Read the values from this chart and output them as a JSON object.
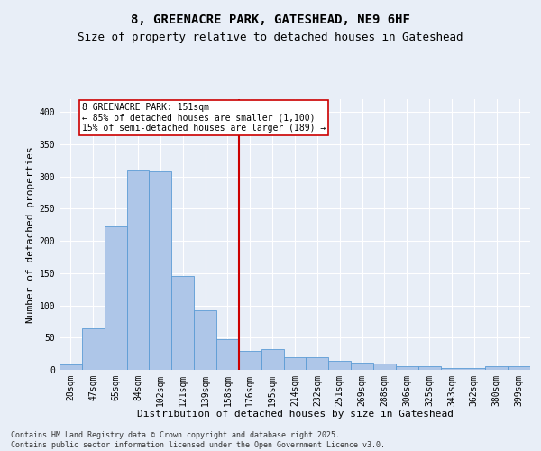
{
  "title_line1": "8, GREENACRE PARK, GATESHEAD, NE9 6HF",
  "title_line2": "Size of property relative to detached houses in Gateshead",
  "xlabel": "Distribution of detached houses by size in Gateshead",
  "ylabel": "Number of detached properties",
  "footnote_line1": "Contains HM Land Registry data © Crown copyright and database right 2025.",
  "footnote_line2": "Contains public sector information licensed under the Open Government Licence v3.0.",
  "bar_labels": [
    "28sqm",
    "47sqm",
    "65sqm",
    "84sqm",
    "102sqm",
    "121sqm",
    "139sqm",
    "158sqm",
    "176sqm",
    "195sqm",
    "214sqm",
    "232sqm",
    "251sqm",
    "269sqm",
    "288sqm",
    "306sqm",
    "325sqm",
    "343sqm",
    "362sqm",
    "380sqm",
    "399sqm"
  ],
  "bar_values": [
    8,
    65,
    222,
    310,
    308,
    145,
    93,
    48,
    30,
    32,
    20,
    19,
    14,
    11,
    10,
    5,
    5,
    3,
    3,
    5,
    5
  ],
  "bar_color": "#aec6e8",
  "bar_edge_color": "#5b9bd5",
  "vline_color": "#cc0000",
  "vline_pos": 7.5,
  "annotation_text": "8 GREENACRE PARK: 151sqm\n← 85% of detached houses are smaller (1,100)\n15% of semi-detached houses are larger (189) →",
  "annotation_box_color": "#cc0000",
  "ylim": [
    0,
    420
  ],
  "yticks": [
    0,
    50,
    100,
    150,
    200,
    250,
    300,
    350,
    400
  ],
  "background_color": "#e8eef7",
  "grid_color": "#ffffff",
  "title_fontsize": 10,
  "subtitle_fontsize": 9,
  "axis_label_fontsize": 8,
  "tick_fontsize": 7,
  "annotation_fontsize": 7,
  "footnote_fontsize": 6
}
